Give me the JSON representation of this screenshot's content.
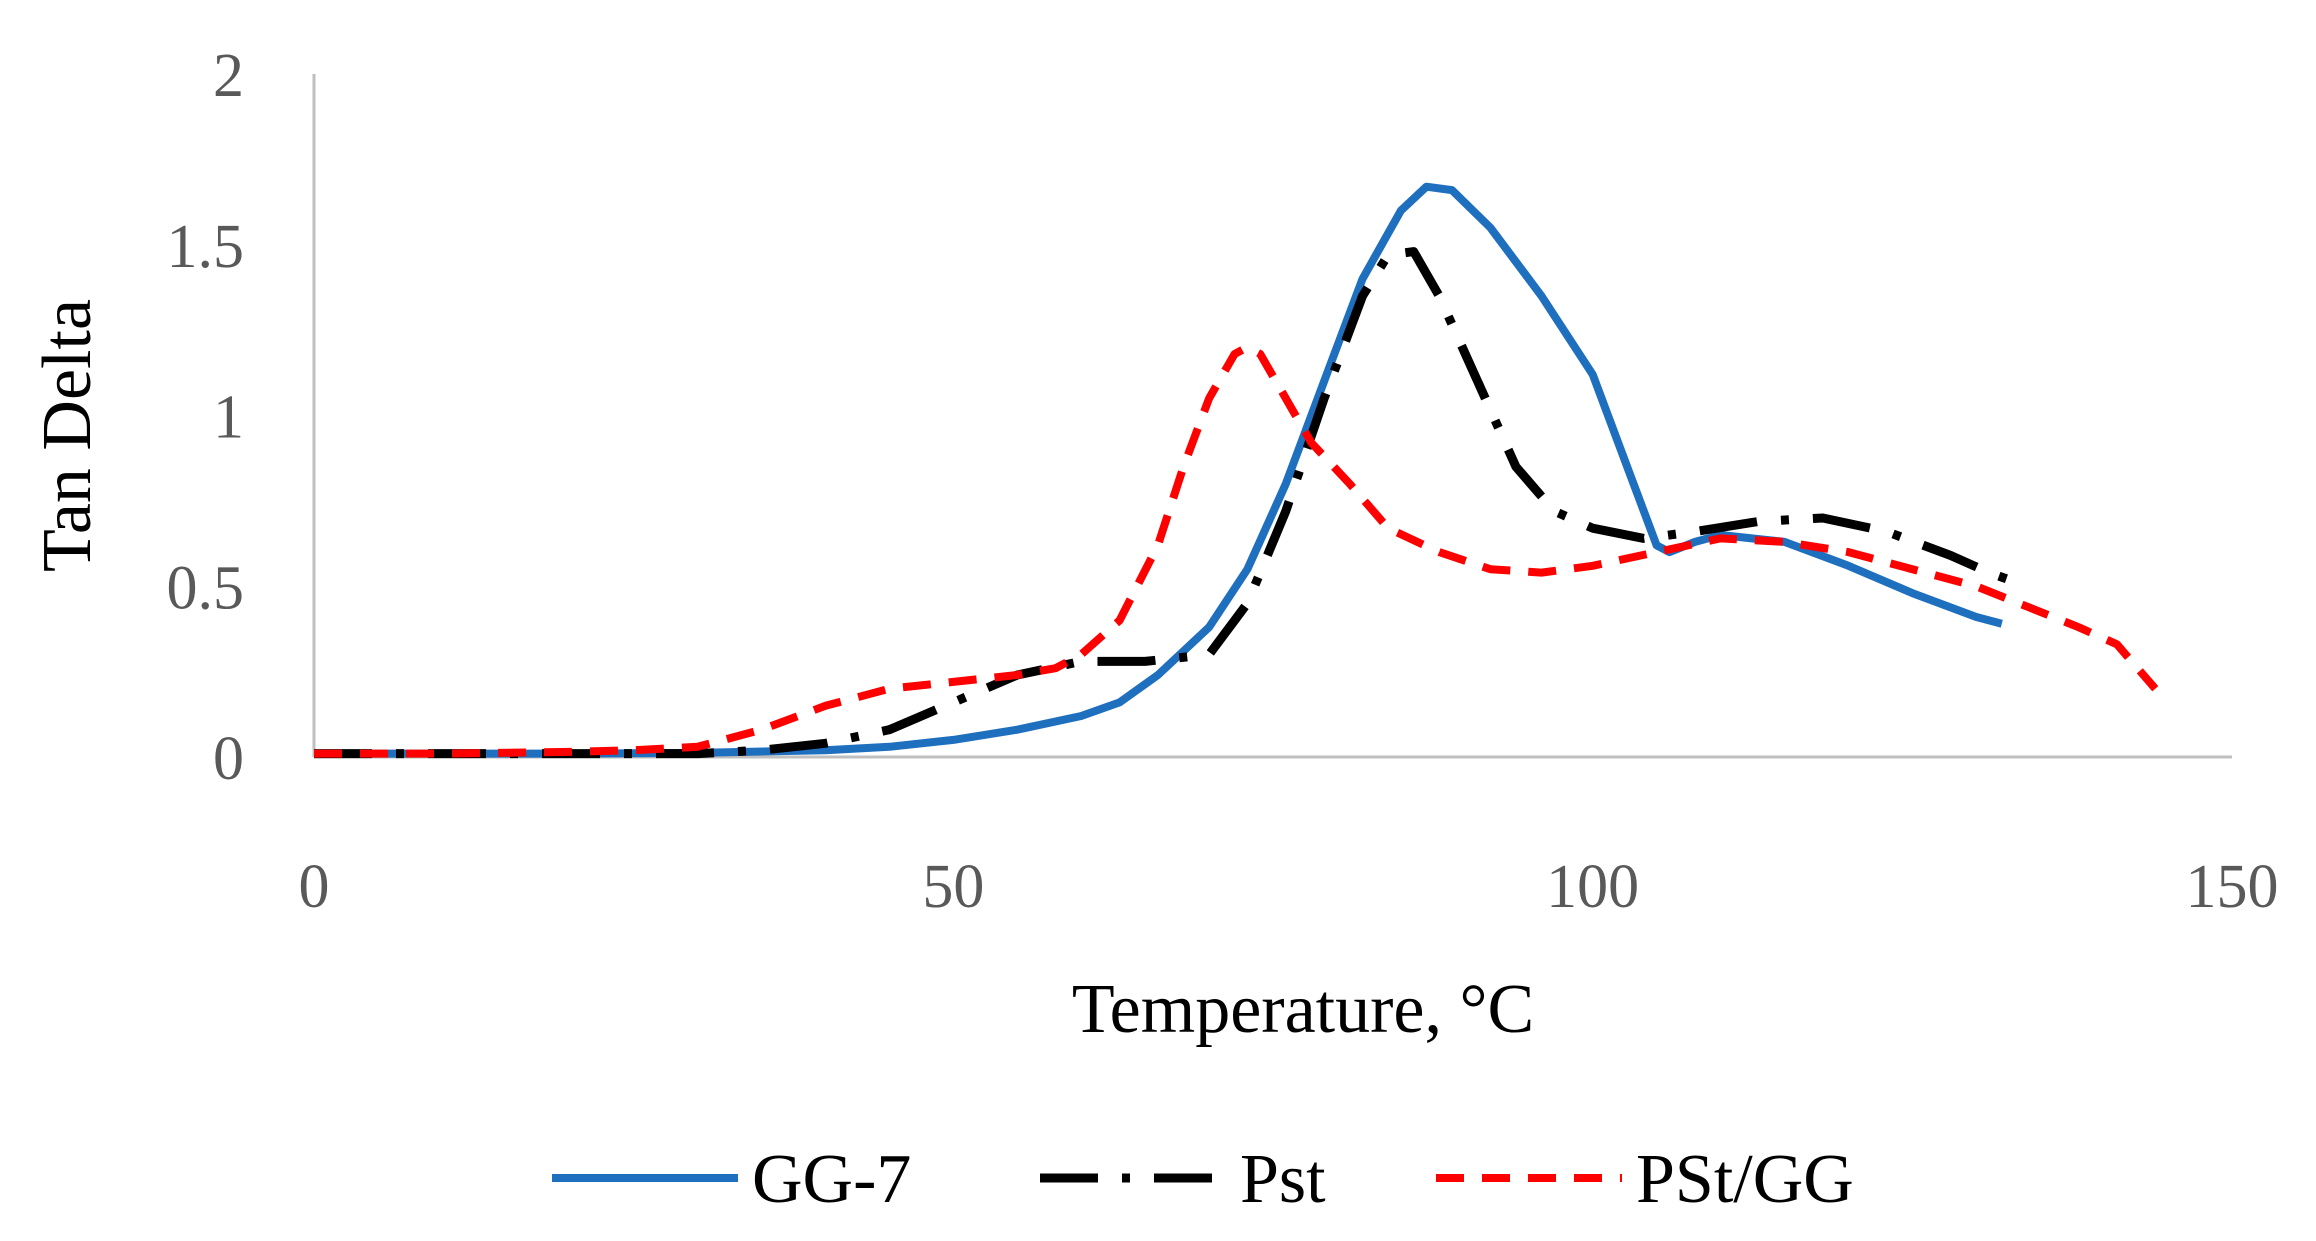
{
  "chart_data": {
    "type": "line",
    "title": "",
    "xlabel": "Temperature,  °C",
    "ylabel": "Tan Delta",
    "xlim": [
      0,
      150
    ],
    "ylim": [
      0,
      2
    ],
    "xticks": [
      "0",
      "50",
      "100",
      "150"
    ],
    "yticks": [
      "0",
      "0.5",
      "1",
      "1.5",
      "2"
    ],
    "grid": false,
    "legend_position": "bottom",
    "series": [
      {
        "name": "GG-7",
        "color": "#1F6FBF",
        "style": "solid",
        "points": [
          [
            0,
            0.01
          ],
          [
            10,
            0.01
          ],
          [
            20,
            0.01
          ],
          [
            30,
            0.012
          ],
          [
            40,
            0.02
          ],
          [
            45,
            0.03
          ],
          [
            50,
            0.05
          ],
          [
            55,
            0.08
          ],
          [
            60,
            0.12
          ],
          [
            63,
            0.16
          ],
          [
            66,
            0.24
          ],
          [
            70,
            0.38
          ],
          [
            73,
            0.55
          ],
          [
            76,
            0.8
          ],
          [
            79,
            1.1
          ],
          [
            82,
            1.4
          ],
          [
            85,
            1.6
          ],
          [
            87,
            1.67
          ],
          [
            89,
            1.66
          ],
          [
            92,
            1.55
          ],
          [
            96,
            1.35
          ],
          [
            100,
            1.12
          ],
          [
            103,
            0.82
          ],
          [
            105,
            0.62
          ],
          [
            106,
            0.6
          ],
          [
            108,
            0.63
          ],
          [
            110,
            0.65
          ],
          [
            115,
            0.63
          ],
          [
            120,
            0.56
          ],
          [
            125,
            0.48
          ],
          [
            130,
            0.41
          ],
          [
            132,
            0.39
          ]
        ]
      },
      {
        "name": "Pst",
        "color": "#000000",
        "style": "dash-dot",
        "points": [
          [
            0,
            0.01
          ],
          [
            10,
            0.01
          ],
          [
            20,
            0.01
          ],
          [
            30,
            0.01
          ],
          [
            35,
            0.02
          ],
          [
            40,
            0.04
          ],
          [
            45,
            0.08
          ],
          [
            50,
            0.16
          ],
          [
            55,
            0.24
          ],
          [
            60,
            0.28
          ],
          [
            65,
            0.28
          ],
          [
            70,
            0.3
          ],
          [
            73,
            0.45
          ],
          [
            76,
            0.72
          ],
          [
            79,
            1.05
          ],
          [
            82,
            1.35
          ],
          [
            84,
            1.47
          ],
          [
            86,
            1.48
          ],
          [
            88,
            1.35
          ],
          [
            91,
            1.1
          ],
          [
            94,
            0.85
          ],
          [
            97,
            0.72
          ],
          [
            100,
            0.67
          ],
          [
            104,
            0.64
          ],
          [
            108,
            0.66
          ],
          [
            113,
            0.69
          ],
          [
            118,
            0.7
          ],
          [
            123,
            0.66
          ],
          [
            128,
            0.59
          ],
          [
            131,
            0.54
          ],
          [
            134,
            0.5
          ]
        ]
      },
      {
        "name": "PSt/GG",
        "color": "#FF0000",
        "style": "dash",
        "points": [
          [
            0,
            0.01
          ],
          [
            10,
            0.01
          ],
          [
            20,
            0.015
          ],
          [
            25,
            0.02
          ],
          [
            30,
            0.03
          ],
          [
            35,
            0.08
          ],
          [
            40,
            0.15
          ],
          [
            45,
            0.2
          ],
          [
            50,
            0.22
          ],
          [
            55,
            0.24
          ],
          [
            58,
            0.26
          ],
          [
            60,
            0.3
          ],
          [
            63,
            0.4
          ],
          [
            66,
            0.62
          ],
          [
            68,
            0.85
          ],
          [
            70,
            1.05
          ],
          [
            72,
            1.18
          ],
          [
            73,
            1.2
          ],
          [
            74,
            1.18
          ],
          [
            76,
            1.05
          ],
          [
            78,
            0.92
          ],
          [
            81,
            0.8
          ],
          [
            84,
            0.67
          ],
          [
            88,
            0.6
          ],
          [
            92,
            0.55
          ],
          [
            96,
            0.54
          ],
          [
            100,
            0.56
          ],
          [
            105,
            0.6
          ],
          [
            110,
            0.64
          ],
          [
            115,
            0.63
          ],
          [
            120,
            0.6
          ],
          [
            125,
            0.55
          ],
          [
            130,
            0.5
          ],
          [
            134,
            0.44
          ],
          [
            138,
            0.38
          ],
          [
            141,
            0.33
          ],
          [
            144,
            0.2
          ]
        ]
      }
    ]
  }
}
